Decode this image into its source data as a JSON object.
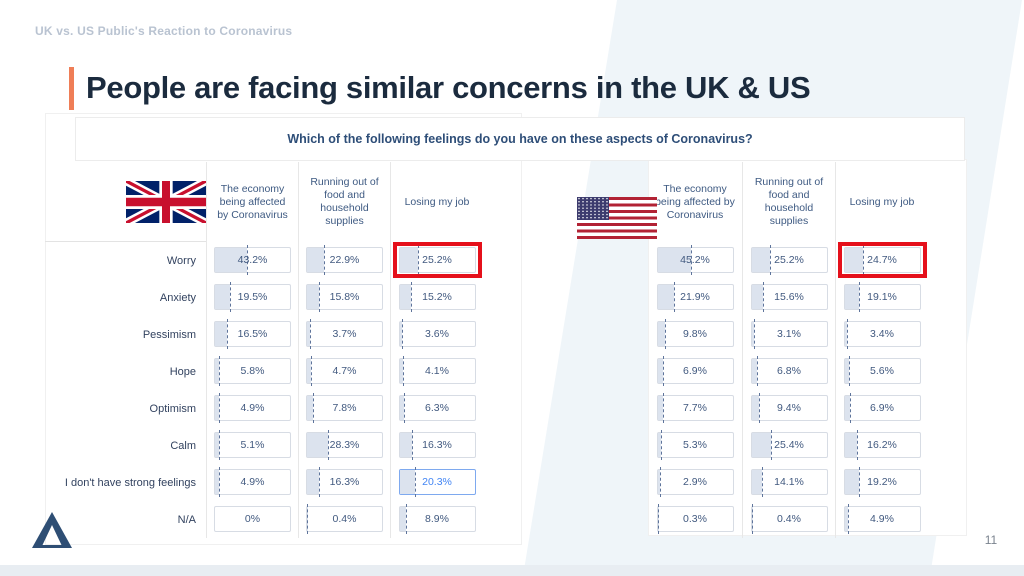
{
  "slide": {
    "eyebrow": "UK vs. US Public's Reaction to Coronavirus",
    "title": "People are facing similar concerns in the UK & US",
    "page_number": "11"
  },
  "question": "Which of the following feelings do you have on these aspects of Coronavirus?",
  "row_labels": [
    "Worry",
    "Anxiety",
    "Pessimism",
    "Hope",
    "Optimism",
    "Calm",
    "I don't have strong feelings",
    "N/A"
  ],
  "columns": [
    "The economy being affected by Coronavirus",
    "Running out of food and household supplies",
    "Losing my job"
  ],
  "icons": {
    "uk_flag": "uk-flag-icon",
    "us_flag": "us-flag-icon",
    "logo": "triangle-delta-logo"
  },
  "chart_data": [
    {
      "type": "table",
      "title": "UK: Which of the following feelings do you have on these aspects of Coronavirus?",
      "unit": "%",
      "cell_bar_scale": [
        0,
        100
      ],
      "row_labels": [
        "Worry",
        "Anxiety",
        "Pessimism",
        "Hope",
        "Optimism",
        "Calm",
        "I don't have strong feelings",
        "N/A"
      ],
      "series": [
        {
          "name": "The economy being affected by Coronavirus",
          "values": [
            43.2,
            19.5,
            16.5,
            5.8,
            4.9,
            5.1,
            4.9,
            0
          ]
        },
        {
          "name": "Running out of food and household supplies",
          "values": [
            22.9,
            15.8,
            3.7,
            4.7,
            7.8,
            28.3,
            16.3,
            0.4
          ]
        },
        {
          "name": "Losing my job",
          "values": [
            25.2,
            15.2,
            3.6,
            4.1,
            6.3,
            16.3,
            20.3,
            8.9
          ]
        }
      ],
      "annotations": [
        "Red box highlight: Worry x Losing my job = 25.2%",
        "Blue selected cell: I don't have strong feelings x Losing my job = 20.3%"
      ]
    },
    {
      "type": "table",
      "title": "US: Which of the following feelings do you have on these aspects of Coronavirus?",
      "unit": "%",
      "cell_bar_scale": [
        0,
        100
      ],
      "row_labels": [
        "Worry",
        "Anxiety",
        "Pessimism",
        "Hope",
        "Optimism",
        "Calm",
        "I don't have strong feelings",
        "N/A"
      ],
      "series": [
        {
          "name": "The economy being affected by Coronavirus",
          "values": [
            45.2,
            21.9,
            9.8,
            6.9,
            7.7,
            5.3,
            2.9,
            0.3
          ]
        },
        {
          "name": "Running out of food and household supplies",
          "values": [
            25.2,
            15.6,
            3.1,
            6.8,
            9.4,
            25.4,
            14.1,
            0.4
          ]
        },
        {
          "name": "Losing my job",
          "values": [
            24.7,
            19.1,
            3.4,
            5.6,
            6.9,
            16.2,
            19.2,
            4.9
          ]
        }
      ],
      "annotations": [
        "Red box highlight: Worry x Losing my job = 24.7%"
      ]
    }
  ],
  "tables": [
    {
      "key": "uk",
      "flag": "uk",
      "has_row_labels": true
    },
    {
      "key": "us",
      "flag": "us",
      "has_row_labels": false
    }
  ],
  "highlights": {
    "red_boxes": [
      {
        "table": 0,
        "row": 0,
        "col": 2
      },
      {
        "table": 1,
        "row": 0,
        "col": 2
      }
    ],
    "selected": {
      "table": 0,
      "row": 6,
      "col": 2
    }
  },
  "colors": {
    "accent_orange": "#EF7E57",
    "title_navy": "#1B2B3E",
    "band_blue": "#EFF5F9",
    "cell_fill": "#DCE3EE",
    "highlight_red": "#E5101B",
    "selected_blue": "#4285F4",
    "logo_navy": "#2E4E74"
  }
}
